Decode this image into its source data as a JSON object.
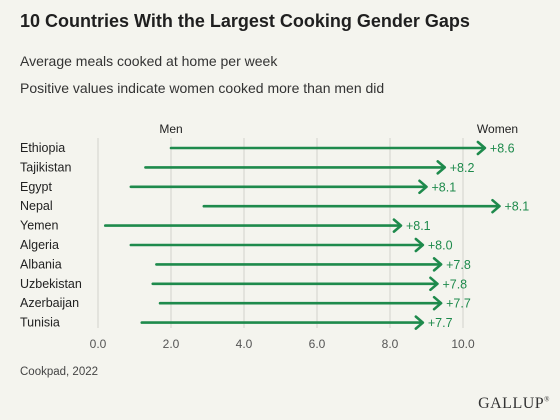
{
  "title": "10 Countries With the Largest Cooking Gender Gaps",
  "subtitle_lines": [
    "Average meals cooked at home per week",
    "Positive values indicate women cooked more than men did"
  ],
  "legend": {
    "left": "Men",
    "right": "Women"
  },
  "source": "Cookpad, 2022",
  "logo": "GALLUP",
  "colors": {
    "accent": "#1e8a4c",
    "grid": "#d2d2cc",
    "background": "#f4f4ee"
  },
  "chart_data": {
    "type": "bar",
    "subtype": "arrow-range",
    "xlim": [
      0,
      11
    ],
    "x_ticks": [
      "0.0",
      "2.0",
      "4.0",
      "6.0",
      "8.0",
      "10.0"
    ],
    "x_tick_values": [
      0,
      2,
      4,
      6,
      8,
      10
    ],
    "grid": "vertical",
    "categories": [
      "Ethiopia",
      "Tajikistan",
      "Egypt",
      "Nepal",
      "Yemen",
      "Algeria",
      "Albania",
      "Uzbekistan",
      "Azerbaijan",
      "Tunisia"
    ],
    "series": [
      {
        "name": "Men",
        "values": [
          2.0,
          1.3,
          0.9,
          2.9,
          0.2,
          0.9,
          1.6,
          1.5,
          1.7,
          1.2
        ]
      },
      {
        "name": "Women",
        "values": [
          10.6,
          9.5,
          9.0,
          11.0,
          8.3,
          8.9,
          9.4,
          9.3,
          9.4,
          8.9
        ]
      }
    ],
    "labels": [
      "+8.6",
      "+8.2",
      "+8.1",
      "+8.1",
      "+8.1",
      "+8.0",
      "+7.8",
      "+7.8",
      "+7.7",
      "+7.7"
    ]
  }
}
